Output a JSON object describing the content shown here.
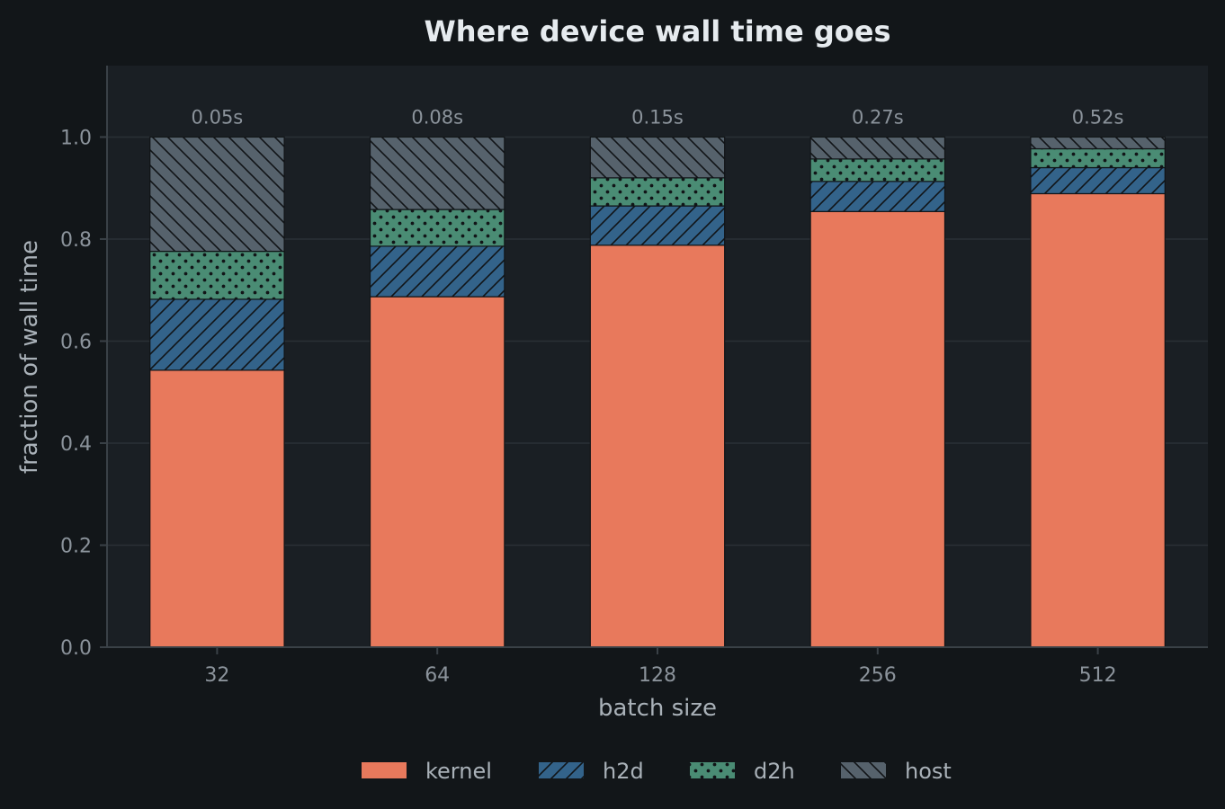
{
  "chart_data": {
    "type": "bar",
    "stacked": true,
    "title": "Where device wall time goes",
    "xlabel": "batch size",
    "ylabel": "fraction of wall time",
    "categories": [
      "32",
      "64",
      "128",
      "256",
      "512"
    ],
    "ylim": [
      0,
      1.14
    ],
    "yticks": [
      0.0,
      0.2,
      0.4,
      0.6,
      0.8,
      1.0
    ],
    "ytick_labels": [
      "0.0",
      "0.2",
      "0.4",
      "0.6",
      "0.8",
      "1.0"
    ],
    "grid": true,
    "legend_position": "bottom-center",
    "totals": [
      "0.05s",
      "0.08s",
      "0.15s",
      "0.27s",
      "0.52s"
    ],
    "series": [
      {
        "name": "kernel",
        "values": [
          0.543,
          0.687,
          0.788,
          0.854,
          0.889
        ],
        "color": "#e8795c",
        "hatch": "none"
      },
      {
        "name": "h2d",
        "values": [
          0.139,
          0.099,
          0.077,
          0.059,
          0.051
        ],
        "color": "#33638a",
        "hatch": "diagonal"
      },
      {
        "name": "d2h",
        "values": [
          0.094,
          0.072,
          0.055,
          0.044,
          0.037
        ],
        "color": "#4a8c74",
        "hatch": "dots"
      },
      {
        "name": "host",
        "values": [
          0.224,
          0.142,
          0.08,
          0.043,
          0.023
        ],
        "color": "#56626c",
        "hatch": "backslash"
      }
    ]
  },
  "colors": {
    "page_background": "#121619",
    "plot_background": "#1a1f24",
    "grid": "#2a3036",
    "axis": "#3a4147"
  }
}
